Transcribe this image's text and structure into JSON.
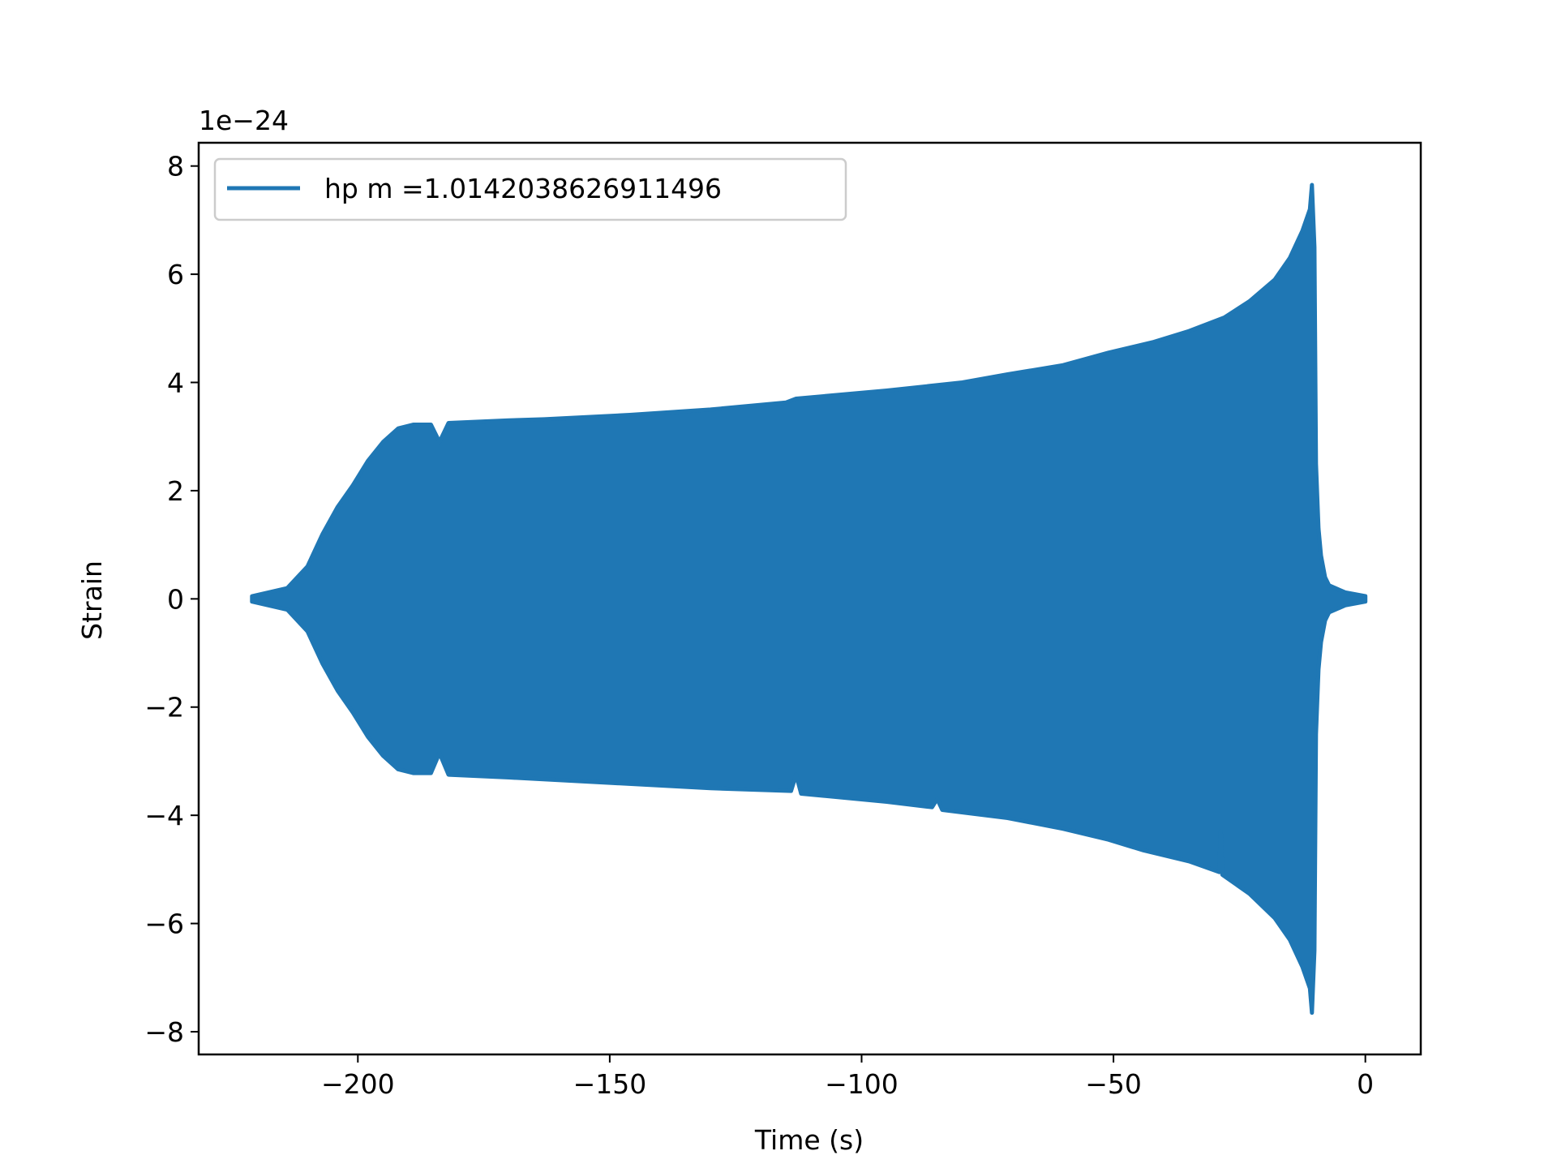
{
  "chart_data": {
    "type": "line",
    "title": "",
    "xlabel": "Time (s)",
    "ylabel": "Strain",
    "offset_text": "1e−24",
    "xlim": [
      -231.6,
      11.0
    ],
    "ylim": [
      -8.42,
      8.43
    ],
    "xticks": [
      -200,
      -150,
      -100,
      -50,
      0
    ],
    "xtick_labels": [
      "−200",
      "−150",
      "−100",
      "−50",
      "0"
    ],
    "yticks": [
      -8,
      -6,
      -4,
      -2,
      0,
      2,
      4,
      6,
      8
    ],
    "ytick_labels": [
      "−8",
      "−6",
      "−4",
      "−2",
      "0",
      "2",
      "4",
      "6",
      "8"
    ],
    "grid": false,
    "legend_position": "top-left",
    "series": [
      {
        "name": "hp m =1.0142038626911496",
        "color": "#1f77b4",
        "envelope_upper": [
          [
            -221,
            0.05
          ],
          [
            -214,
            0.2
          ],
          [
            -210,
            0.6
          ],
          [
            -207,
            1.2
          ],
          [
            -204,
            1.7
          ],
          [
            -201,
            2.1
          ],
          [
            -198,
            2.55
          ],
          [
            -195,
            2.9
          ],
          [
            -192,
            3.15
          ],
          [
            -189,
            3.22
          ],
          [
            -185.5,
            3.22
          ],
          [
            -183.8,
            2.9
          ],
          [
            -182,
            3.25
          ],
          [
            -170,
            3.3
          ],
          [
            -163,
            3.32
          ],
          [
            -146,
            3.4
          ],
          [
            -130,
            3.5
          ],
          [
            -115,
            3.63
          ],
          [
            -113,
            3.7
          ],
          [
            -95,
            3.85
          ],
          [
            -80,
            4.0
          ],
          [
            -71,
            4.15
          ],
          [
            -60,
            4.32
          ],
          [
            -51,
            4.55
          ],
          [
            -42,
            4.75
          ],
          [
            -35,
            4.95
          ],
          [
            -28,
            5.2
          ],
          [
            -23,
            5.5
          ],
          [
            -18,
            5.9
          ],
          [
            -15,
            6.3
          ],
          [
            -12.5,
            6.8
          ],
          [
            -11,
            7.2
          ],
          [
            -10.6,
            7.65
          ],
          [
            -10.1,
            6.5
          ],
          [
            -9.8,
            2.5
          ],
          [
            -9.3,
            1.3
          ],
          [
            -8.8,
            0.8
          ],
          [
            -8,
            0.4
          ],
          [
            -7.2,
            0.25
          ],
          [
            -4,
            0.12
          ],
          [
            0,
            0.05
          ]
        ],
        "envelope_lower": [
          [
            -221,
            -0.05
          ],
          [
            -214,
            -0.2
          ],
          [
            -210,
            -0.6
          ],
          [
            -207,
            -1.2
          ],
          [
            -204,
            -1.7
          ],
          [
            -201,
            -2.1
          ],
          [
            -198,
            -2.55
          ],
          [
            -195,
            -2.9
          ],
          [
            -192,
            -3.15
          ],
          [
            -189,
            -3.22
          ],
          [
            -185.5,
            -3.22
          ],
          [
            -183.8,
            -2.85
          ],
          [
            -182,
            -3.25
          ],
          [
            -170,
            -3.3
          ],
          [
            -150,
            -3.4
          ],
          [
            -130,
            -3.5
          ],
          [
            -114,
            -3.55
          ],
          [
            -113,
            -3.25
          ],
          [
            -112,
            -3.6
          ],
          [
            -95,
            -3.75
          ],
          [
            -86,
            -3.85
          ],
          [
            -85,
            -3.7
          ],
          [
            -84,
            -3.9
          ],
          [
            -71,
            -4.05
          ],
          [
            -60,
            -4.25
          ],
          [
            -51,
            -4.45
          ],
          [
            -44,
            -4.65
          ],
          [
            -35,
            -4.85
          ],
          [
            -29,
            -5.05
          ],
          [
            -28.7,
            -4.3
          ],
          [
            -28.4,
            -5.1
          ],
          [
            -23,
            -5.45
          ],
          [
            -18,
            -5.9
          ],
          [
            -15,
            -6.3
          ],
          [
            -12.5,
            -6.8
          ],
          [
            -11,
            -7.2
          ],
          [
            -10.6,
            -7.65
          ],
          [
            -10.1,
            -6.5
          ],
          [
            -9.8,
            -2.5
          ],
          [
            -9.3,
            -1.3
          ],
          [
            -8.8,
            -0.8
          ],
          [
            -8,
            -0.4
          ],
          [
            -7.2,
            -0.25
          ],
          [
            -4,
            -0.12
          ],
          [
            0,
            -0.05
          ]
        ]
      }
    ]
  }
}
